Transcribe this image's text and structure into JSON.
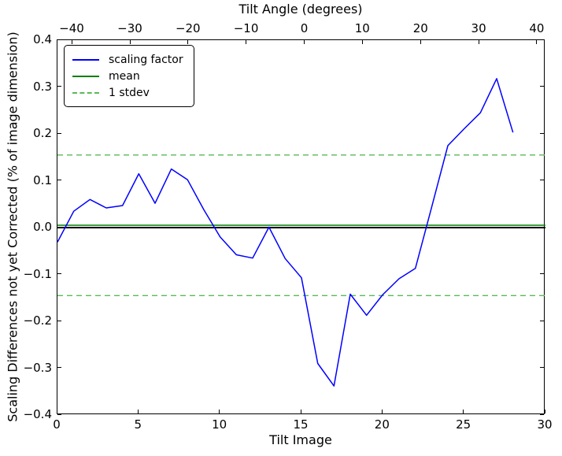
{
  "chart_data": {
    "type": "line",
    "top_axis_label": "Tilt Angle (degrees)",
    "xlabel": "Tilt Image",
    "ylabel": "Scaling Differences not yet Corrected (% of image dimension)",
    "xlim": [
      0,
      30
    ],
    "ylim": [
      -0.4,
      0.4
    ],
    "grid": false,
    "legend_position": "upper left",
    "x_ticks": {
      "values": [
        0,
        5,
        10,
        15,
        20,
        25,
        30
      ],
      "labels": [
        "0",
        "5",
        "10",
        "15",
        "20",
        "25",
        "30"
      ]
    },
    "y_ticks": {
      "values": [
        0.4,
        0.3,
        0.2,
        0.1,
        0.0,
        -0.1,
        -0.2,
        -0.3,
        -0.4
      ],
      "labels": [
        "0.4",
        "0.3",
        "0.2",
        "0.1",
        "0.0",
        "−0.1",
        "−0.2",
        "−0.3",
        "−0.4"
      ]
    },
    "top_ticks": {
      "labels": [
        "−40",
        "−30",
        "−20",
        "−10",
        "0",
        "10",
        "20",
        "30",
        "40"
      ],
      "degree_values": [
        -40,
        -30,
        -20,
        -10,
        0,
        10,
        20,
        30,
        40
      ],
      "x_image_positions": [
        0.92,
        4.5,
        8.07,
        11.64,
        15.22,
        18.79,
        22.37,
        25.94,
        29.51
      ]
    },
    "series": [
      {
        "name": "scaling factor",
        "color": "#0000ff",
        "style": "solid",
        "x": [
          0,
          1,
          2,
          3,
          4,
          5,
          6,
          7,
          8,
          9,
          10,
          11,
          12,
          13,
          14,
          15,
          16,
          17,
          18,
          19,
          20,
          21,
          22,
          23,
          24,
          25,
          26,
          27,
          28
        ],
        "y": [
          -0.031,
          0.035,
          0.06,
          0.042,
          0.047,
          0.115,
          0.052,
          0.125,
          0.102,
          0.038,
          -0.02,
          -0.058,
          -0.065,
          0.001,
          -0.066,
          -0.107,
          -0.29,
          -0.338,
          -0.142,
          -0.187,
          -0.143,
          -0.109,
          -0.087,
          0.043,
          0.175,
          0.211,
          0.245,
          0.318,
          0.203
        ]
      },
      {
        "name": "mean",
        "color": "#007f00",
        "style": "solid",
        "y_value": 0.005
      },
      {
        "name": "1 stdev",
        "color": "#5aba5a",
        "style": "dashed",
        "stdev": 0.15,
        "y_values": [
          0.155,
          -0.145
        ]
      },
      {
        "name": "zero baseline",
        "color": "#000000",
        "style": "solid",
        "y_value": 0.0
      }
    ],
    "legend": {
      "items": [
        {
          "label": "scaling factor",
          "color": "#0000ff",
          "dashed": false
        },
        {
          "label": "mean",
          "color": "#007f00",
          "dashed": false
        },
        {
          "label": "1 stdev",
          "color": "#5aba5a",
          "dashed": true
        }
      ]
    }
  }
}
